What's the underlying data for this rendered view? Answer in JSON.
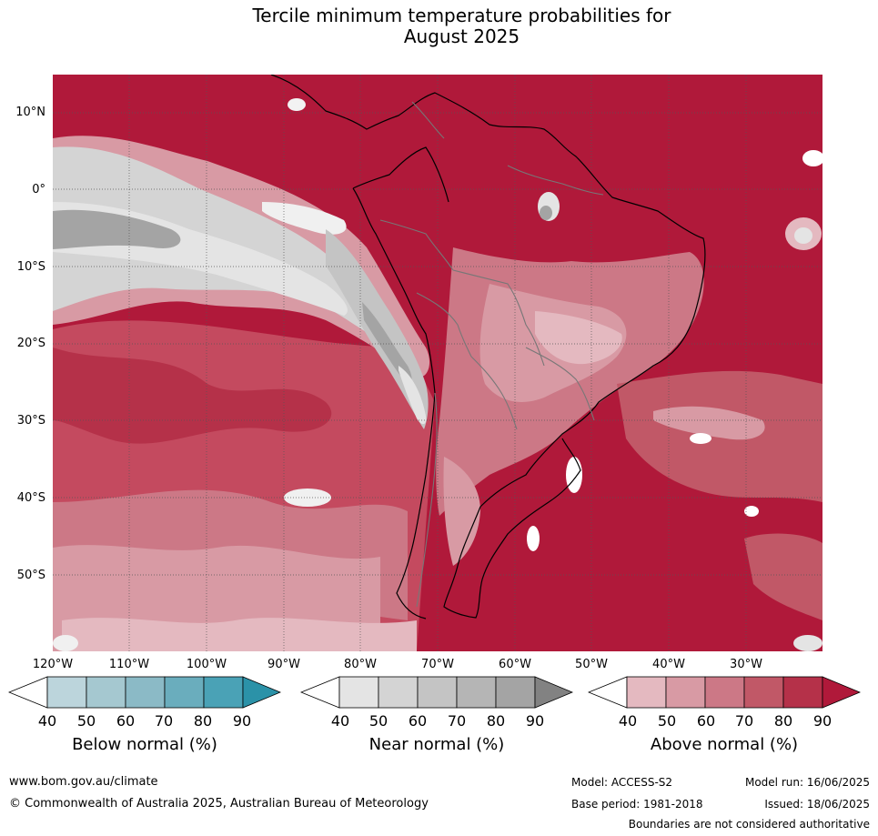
{
  "title_line1": "Tercile minimum temperature probabilities for",
  "title_line2": "August 2025",
  "lat_labels": [
    "10°N",
    "0°",
    "10°S",
    "20°S",
    "30°S",
    "40°S",
    "50°S"
  ],
  "lon_labels": [
    "120°W",
    "110°W",
    "100°W",
    "90°W",
    "80°W",
    "70°W",
    "60°W",
    "50°W",
    "40°W",
    "30°W"
  ],
  "colorbars": [
    {
      "title": "Below normal (%)",
      "ticks": [
        "40",
        "50",
        "60",
        "70",
        "80",
        "90"
      ],
      "colors": [
        "#ffffff",
        "#bcd5dc",
        "#a5c8d0",
        "#8bbac6",
        "#6aadbd",
        "#4aa2b6",
        "#2b92a8"
      ]
    },
    {
      "title": "Near normal (%)",
      "ticks": [
        "40",
        "50",
        "60",
        "70",
        "80",
        "90"
      ],
      "colors": [
        "#ffffff",
        "#e4e4e4",
        "#d4d4d4",
        "#c4c4c4",
        "#b5b5b5",
        "#a4a4a4",
        "#828282"
      ]
    },
    {
      "title": "Above normal (%)",
      "ticks": [
        "40",
        "50",
        "60",
        "70",
        "80",
        "90"
      ],
      "colors": [
        "#ffffff",
        "#e4b9c0",
        "#d89aa4",
        "#cc7886",
        "#c15867",
        "#b53149",
        "#b0193a"
      ]
    }
  ],
  "footer": {
    "website": "www.bom.gov.au/climate",
    "copyright": "© Commonwealth of Australia 2025, Australian Bureau of Meteorology",
    "model": "Model: ACCESS-S2",
    "base_period": "Base period: 1981-2018",
    "model_run": "Model run: 16/06/2025",
    "issued": "Issued: 18/06/2025",
    "disclaimer": "Boundaries are not considered authoritative"
  }
}
